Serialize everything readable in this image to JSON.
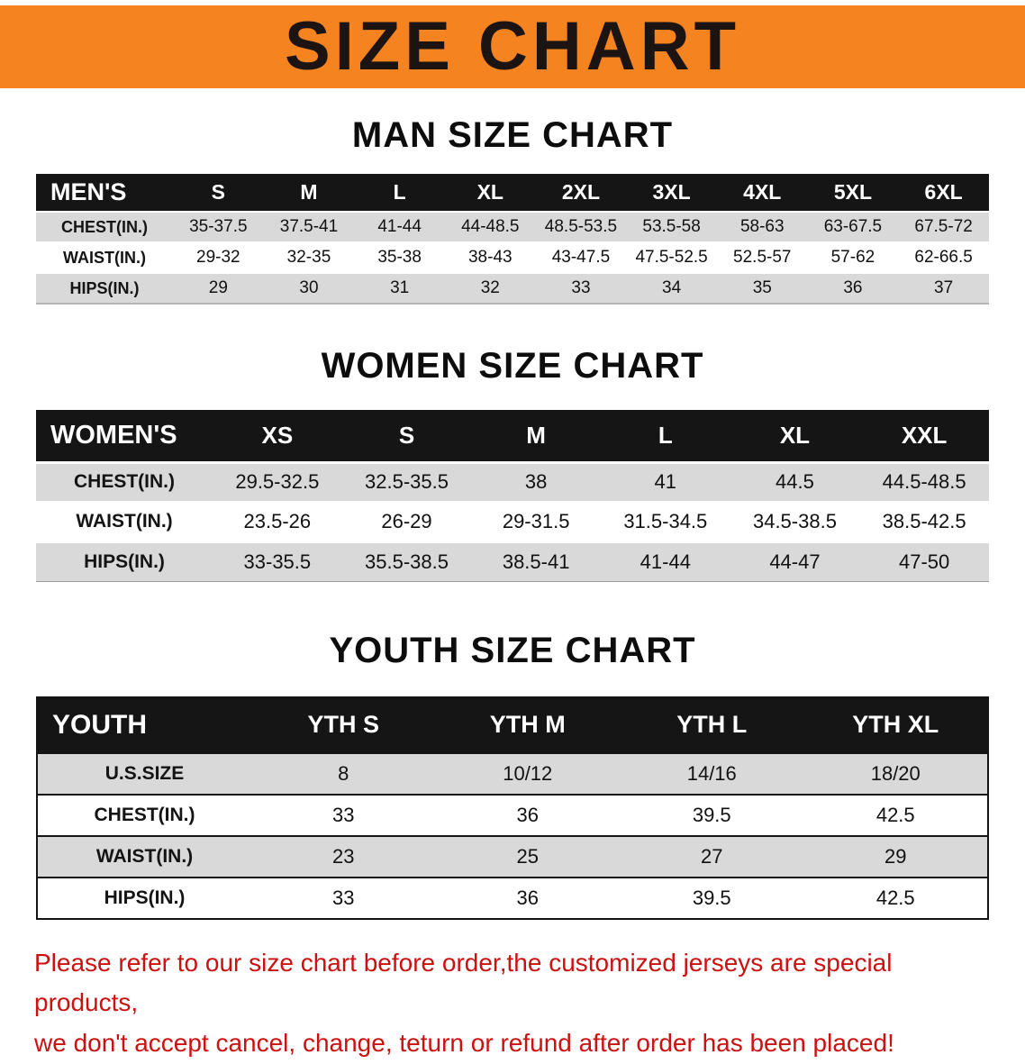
{
  "banner": {
    "title": "SIZE CHART"
  },
  "colors": {
    "banner_bg": "#f5831f",
    "header_bg": "#151515",
    "row_gray": "#d9d9d9",
    "disclaimer_red": "#cc1111"
  },
  "sections": [
    {
      "heading": "MAN SIZE CHART",
      "table": {
        "name": "mens-size-table",
        "header": [
          "MEN'S",
          "S",
          "M",
          "L",
          "XL",
          "2XL",
          "3XL",
          "4XL",
          "5XL",
          "6XL"
        ],
        "rows": [
          {
            "label": "CHEST(IN.)",
            "values": [
              "35-37.5",
              "37.5-41",
              "41-44",
              "44-48.5",
              "48.5-53.5",
              "53.5-58",
              "58-63",
              "63-67.5",
              "67.5-72"
            ]
          },
          {
            "label": "WAIST(IN.)",
            "values": [
              "29-32",
              "32-35",
              "35-38",
              "38-43",
              "43-47.5",
              "47.5-52.5",
              "52.5-57",
              "57-62",
              "62-66.5"
            ]
          },
          {
            "label": "HIPS(IN.)",
            "values": [
              "29",
              "30",
              "31",
              "32",
              "33",
              "34",
              "35",
              "36",
              "37"
            ]
          }
        ]
      }
    },
    {
      "heading": "WOMEN SIZE CHART",
      "table": {
        "name": "womens-size-table",
        "header": [
          "WOMEN'S",
          "XS",
          "S",
          "M",
          "L",
          "XL",
          "XXL"
        ],
        "rows": [
          {
            "label": "CHEST(IN.)",
            "values": [
              "29.5-32.5",
              "32.5-35.5",
              "38",
              "41",
              "44.5",
              "44.5-48.5"
            ]
          },
          {
            "label": "WAIST(IN.)",
            "values": [
              "23.5-26",
              "26-29",
              "29-31.5",
              "31.5-34.5",
              "34.5-38.5",
              "38.5-42.5"
            ]
          },
          {
            "label": "HIPS(IN.)",
            "values": [
              "33-35.5",
              "35.5-38.5",
              "38.5-41",
              "41-44",
              "44-47",
              "47-50"
            ]
          }
        ]
      }
    },
    {
      "heading": "YOUTH SIZE CHART",
      "table": {
        "name": "youth-size-table",
        "header": [
          "YOUTH",
          "YTH S",
          "YTH M",
          "YTH L",
          "YTH XL"
        ],
        "rows": [
          {
            "label": "U.S.SIZE",
            "values": [
              "8",
              "10/12",
              "14/16",
              "18/20"
            ]
          },
          {
            "label": "CHEST(IN.)",
            "values": [
              "33",
              "36",
              "39.5",
              "42.5"
            ]
          },
          {
            "label": "WAIST(IN.)",
            "values": [
              "23",
              "25",
              "27",
              "29"
            ]
          },
          {
            "label": "HIPS(IN.)",
            "values": [
              "33",
              "36",
              "39.5",
              "42.5"
            ]
          }
        ]
      }
    }
  ],
  "disclaimer": {
    "line1": "Please refer to our size chart before order,the customized jerseys are special products,",
    "line2": "we don't accept cancel, change, teturn or refund after order has been placed!"
  }
}
